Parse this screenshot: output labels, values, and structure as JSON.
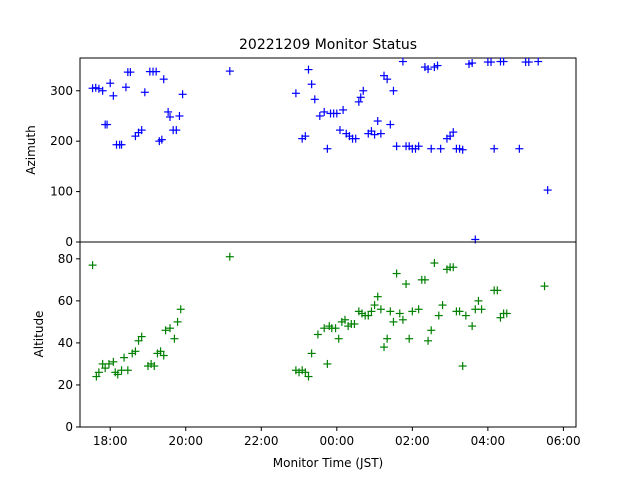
{
  "figure": {
    "title": "20221209 Monitor Status",
    "xlabel": "Monitor Time (JST)"
  },
  "chart_data": [
    {
      "type": "scatter",
      "ylabel": "Azimuth",
      "color": "#0000ff",
      "marker": "plus",
      "xlim": [
        "17:12",
        "06:20"
      ],
      "ylim": [
        0,
        365
      ],
      "y_ticks": [
        "0",
        "100",
        "200",
        "300"
      ],
      "grid": false,
      "series": [
        {
          "points": [
            [
              "17:32",
              305
            ],
            [
              "17:37",
              306
            ],
            [
              "17:42",
              304
            ],
            [
              "17:48",
              300
            ],
            [
              "17:52",
              233
            ],
            [
              "17:55",
              233
            ],
            [
              "18:00",
              315
            ],
            [
              "18:05",
              290
            ],
            [
              "18:10",
              193
            ],
            [
              "18:15",
              193
            ],
            [
              "18:18",
              193
            ],
            [
              "18:25",
              307
            ],
            [
              "18:28",
              337
            ],
            [
              "18:32",
              337
            ],
            [
              "18:40",
              210
            ],
            [
              "18:45",
              217
            ],
            [
              "18:50",
              222
            ],
            [
              "18:55",
              297
            ],
            [
              "19:03",
              338
            ],
            [
              "19:08",
              338
            ],
            [
              "19:13",
              338
            ],
            [
              "19:18",
              200
            ],
            [
              "19:22",
              203
            ],
            [
              "19:25",
              323
            ],
            [
              "19:32",
              258
            ],
            [
              "19:35",
              248
            ],
            [
              "19:40",
              222
            ],
            [
              "19:45",
              222
            ],
            [
              "19:50",
              250
            ],
            [
              "19:55",
              293
            ],
            [
              "21:10",
              339
            ],
            [
              "22:55",
              295
            ],
            [
              "23:05",
              205
            ],
            [
              "23:10",
              210
            ],
            [
              "23:15",
              342
            ],
            [
              "23:20",
              313
            ],
            [
              "23:25",
              283
            ],
            [
              "23:33",
              250
            ],
            [
              "23:40",
              258
            ],
            [
              "23:45",
              185
            ],
            [
              "23:50",
              255
            ],
            [
              "23:55",
              255
            ],
            [
              "00:00",
              255
            ],
            [
              "00:05",
              222
            ],
            [
              "00:10",
              262
            ],
            [
              "00:15",
              215
            ],
            [
              "00:20",
              210
            ],
            [
              "00:25",
              205
            ],
            [
              "00:30",
              205
            ],
            [
              "00:35",
              278
            ],
            [
              "00:38",
              287
            ],
            [
              "00:42",
              300
            ],
            [
              "00:50",
              215
            ],
            [
              "00:55",
              220
            ],
            [
              "01:00",
              213
            ],
            [
              "01:05",
              240
            ],
            [
              "01:10",
              215
            ],
            [
              "01:15",
              330
            ],
            [
              "01:20",
              323
            ],
            [
              "01:25",
              233
            ],
            [
              "01:30",
              300
            ],
            [
              "01:35",
              190
            ],
            [
              "01:45",
              358
            ],
            [
              "01:50",
              190
            ],
            [
              "01:55",
              190
            ],
            [
              "02:00",
              185
            ],
            [
              "02:05",
              185
            ],
            [
              "02:10",
              190
            ],
            [
              "02:20",
              347
            ],
            [
              "02:25",
              343
            ],
            [
              "02:30",
              185
            ],
            [
              "02:35",
              347
            ],
            [
              "02:40",
              350
            ],
            [
              "02:45",
              185
            ],
            [
              "02:55",
              205
            ],
            [
              "03:00",
              210
            ],
            [
              "03:05",
              218
            ],
            [
              "03:10",
              185
            ],
            [
              "03:15",
              185
            ],
            [
              "03:20",
              183
            ],
            [
              "03:30",
              353
            ],
            [
              "03:35",
              355
            ],
            [
              "03:40",
              5
            ],
            [
              "04:00",
              357
            ],
            [
              "04:05",
              357
            ],
            [
              "04:10",
              185
            ],
            [
              "04:20",
              358
            ],
            [
              "04:25",
              358
            ],
            [
              "04:50",
              185
            ],
            [
              "05:00",
              357
            ],
            [
              "05:05",
              357
            ],
            [
              "05:20",
              358
            ],
            [
              "05:35",
              103
            ]
          ]
        }
      ]
    },
    {
      "type": "scatter",
      "ylabel": "Altitude",
      "color": "#008000",
      "marker": "plus",
      "xlim": [
        "17:12",
        "06:20"
      ],
      "ylim": [
        0,
        88
      ],
      "y_ticks": [
        "0",
        "20",
        "40",
        "60",
        "80"
      ],
      "x_ticks": [
        "18:00",
        "20:00",
        "22:00",
        "00:00",
        "02:00",
        "04:00",
        "06:00"
      ],
      "grid": false,
      "series": [
        {
          "points": [
            [
              "17:32",
              77
            ],
            [
              "17:38",
              24
            ],
            [
              "17:42",
              26
            ],
            [
              "17:48",
              30
            ],
            [
              "17:52",
              28
            ],
            [
              "17:58",
              30
            ],
            [
              "18:05",
              31
            ],
            [
              "18:08",
              26
            ],
            [
              "18:12",
              25
            ],
            [
              "18:18",
              27
            ],
            [
              "18:22",
              33
            ],
            [
              "18:28",
              27
            ],
            [
              "18:35",
              35
            ],
            [
              "18:40",
              36
            ],
            [
              "18:45",
              41
            ],
            [
              "18:50",
              43
            ],
            [
              "19:00",
              29
            ],
            [
              "19:05",
              30
            ],
            [
              "19:10",
              29
            ],
            [
              "19:15",
              35
            ],
            [
              "19:20",
              36
            ],
            [
              "19:25",
              34
            ],
            [
              "19:28",
              46
            ],
            [
              "19:35",
              47
            ],
            [
              "19:42",
              42
            ],
            [
              "19:47",
              50
            ],
            [
              "19:52",
              56
            ],
            [
              "21:10",
              81
            ],
            [
              "22:55",
              27
            ],
            [
              "23:00",
              26
            ],
            [
              "23:05",
              27
            ],
            [
              "23:10",
              26
            ],
            [
              "23:15",
              24
            ],
            [
              "23:20",
              35
            ],
            [
              "23:30",
              44
            ],
            [
              "23:40",
              47
            ],
            [
              "23:45",
              30
            ],
            [
              "23:48",
              48
            ],
            [
              "23:52",
              47
            ],
            [
              "23:58",
              47
            ],
            [
              "00:03",
              42
            ],
            [
              "00:08",
              50
            ],
            [
              "00:13",
              51
            ],
            [
              "00:18",
              48
            ],
            [
              "00:23",
              49
            ],
            [
              "00:28",
              49
            ],
            [
              "00:35",
              55
            ],
            [
              "00:40",
              54
            ],
            [
              "00:45",
              53
            ],
            [
              "00:50",
              53
            ],
            [
              "00:55",
              55
            ],
            [
              "01:00",
              58
            ],
            [
              "01:05",
              62
            ],
            [
              "01:10",
              56
            ],
            [
              "01:15",
              38
            ],
            [
              "01:20",
              42
            ],
            [
              "01:25",
              55
            ],
            [
              "01:30",
              50
            ],
            [
              "01:35",
              73
            ],
            [
              "01:40",
              54
            ],
            [
              "01:45",
              51
            ],
            [
              "01:50",
              68
            ],
            [
              "01:55",
              42
            ],
            [
              "02:00",
              55
            ],
            [
              "02:10",
              56
            ],
            [
              "02:15",
              70
            ],
            [
              "02:20",
              70
            ],
            [
              "02:25",
              41
            ],
            [
              "02:30",
              46
            ],
            [
              "02:35",
              78
            ],
            [
              "02:42",
              53
            ],
            [
              "02:48",
              58
            ],
            [
              "02:55",
              75
            ],
            [
              "03:00",
              76
            ],
            [
              "03:05",
              76
            ],
            [
              "03:10",
              55
            ],
            [
              "03:15",
              55
            ],
            [
              "03:20",
              29
            ],
            [
              "03:25",
              53
            ],
            [
              "03:35",
              48
            ],
            [
              "03:40",
              56
            ],
            [
              "03:45",
              60
            ],
            [
              "03:50",
              56
            ],
            [
              "04:10",
              65
            ],
            [
              "04:15",
              65
            ],
            [
              "04:20",
              52
            ],
            [
              "04:25",
              54
            ],
            [
              "04:30",
              54
            ],
            [
              "05:30",
              67
            ]
          ]
        }
      ]
    }
  ]
}
